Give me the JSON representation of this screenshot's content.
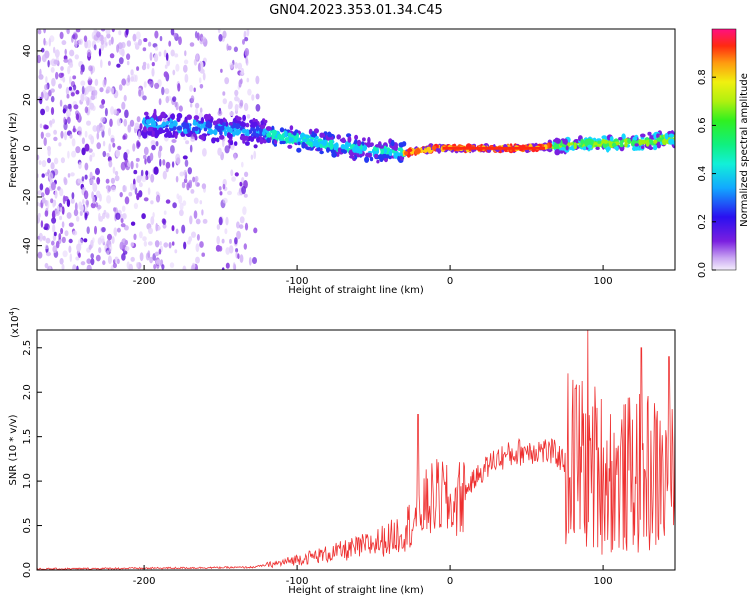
{
  "title": "GN04.2023.353.01.34.C45",
  "colors": {
    "snr_line": "#ee3030",
    "frame": "#000000"
  },
  "chart_data": [
    {
      "type": "heatmap",
      "xlabel": "Height of straight line (km)",
      "ylabel": "Frequency (Hz)",
      "xlim": [
        -270,
        147
      ],
      "ylim": [
        -50,
        49
      ],
      "xticks": [
        -200,
        -100,
        0,
        100
      ],
      "xtick_labels": [
        "-200",
        "-100",
        "0",
        "100"
      ],
      "yticks": [
        -40,
        -20,
        0,
        20,
        40
      ],
      "ytick_labels": [
        "-40",
        "-20",
        "0",
        "20",
        "40"
      ],
      "colorbar": {
        "label": "Normalized spectral amplitude",
        "range": [
          0,
          1
        ],
        "ticks": [
          0.0,
          0.2,
          0.4,
          0.6,
          0.8
        ],
        "tick_labels": [
          "0.0",
          "0.2",
          "0.4",
          "0.6",
          "0.8"
        ],
        "colormap": "rainbow"
      },
      "ridge": {
        "x": [
          -190,
          -170,
          -150,
          -130,
          -110,
          -90,
          -70,
          -50,
          -30,
          -10,
          10,
          30,
          50,
          70,
          90,
          110,
          130,
          145
        ],
        "y": [
          10,
          9,
          8,
          7,
          5,
          3,
          1,
          -1,
          -2,
          0,
          0,
          0,
          0,
          1,
          2,
          2,
          3,
          4
        ]
      },
      "grid": false
    },
    {
      "type": "line",
      "xlabel": "Height of straight line (km)",
      "ylabel": "SNR (10 * v/v)",
      "scale_note": "(x10",
      "scale_exp": "4",
      "scale_close": ")",
      "xlim": [
        -270,
        147
      ],
      "ylim": [
        0,
        2.7
      ],
      "xticks": [
        -200,
        -100,
        0,
        100
      ],
      "xtick_labels": [
        "-200",
        "-100",
        "0",
        "100"
      ],
      "yticks": [
        0.0,
        0.5,
        1.0,
        1.5,
        2.0,
        2.5
      ],
      "ytick_labels": [
        "0.0",
        "0.5",
        "1.0",
        "1.5",
        "2.0",
        "2.5"
      ],
      "envelope": {
        "x": [
          -270,
          -200,
          -130,
          -110,
          -100,
          -80,
          -60,
          -40,
          -30,
          -22,
          -15,
          -5,
          0,
          5,
          10,
          20,
          30,
          40,
          50,
          60,
          70,
          75,
          80,
          90,
          100,
          110,
          120,
          130,
          140,
          147
        ],
        "y": [
          0.01,
          0.02,
          0.03,
          0.08,
          0.12,
          0.18,
          0.25,
          0.35,
          0.45,
          0.6,
          0.75,
          0.85,
          0.7,
          0.78,
          0.9,
          1.1,
          1.25,
          1.3,
          1.35,
          1.35,
          1.3,
          1.2,
          1.25,
          1.2,
          1.1,
          1.0,
          1.1,
          1.1,
          1.0,
          1.0
        ]
      },
      "peaks": [
        {
          "x": -21,
          "y": 1.75
        },
        {
          "x": -12,
          "y": 1.2
        },
        {
          "x": 90,
          "y": 2.7
        },
        {
          "x": 125,
          "y": 2.5
        },
        {
          "x": 143,
          "y": 2.4
        }
      ],
      "grid": false
    }
  ]
}
